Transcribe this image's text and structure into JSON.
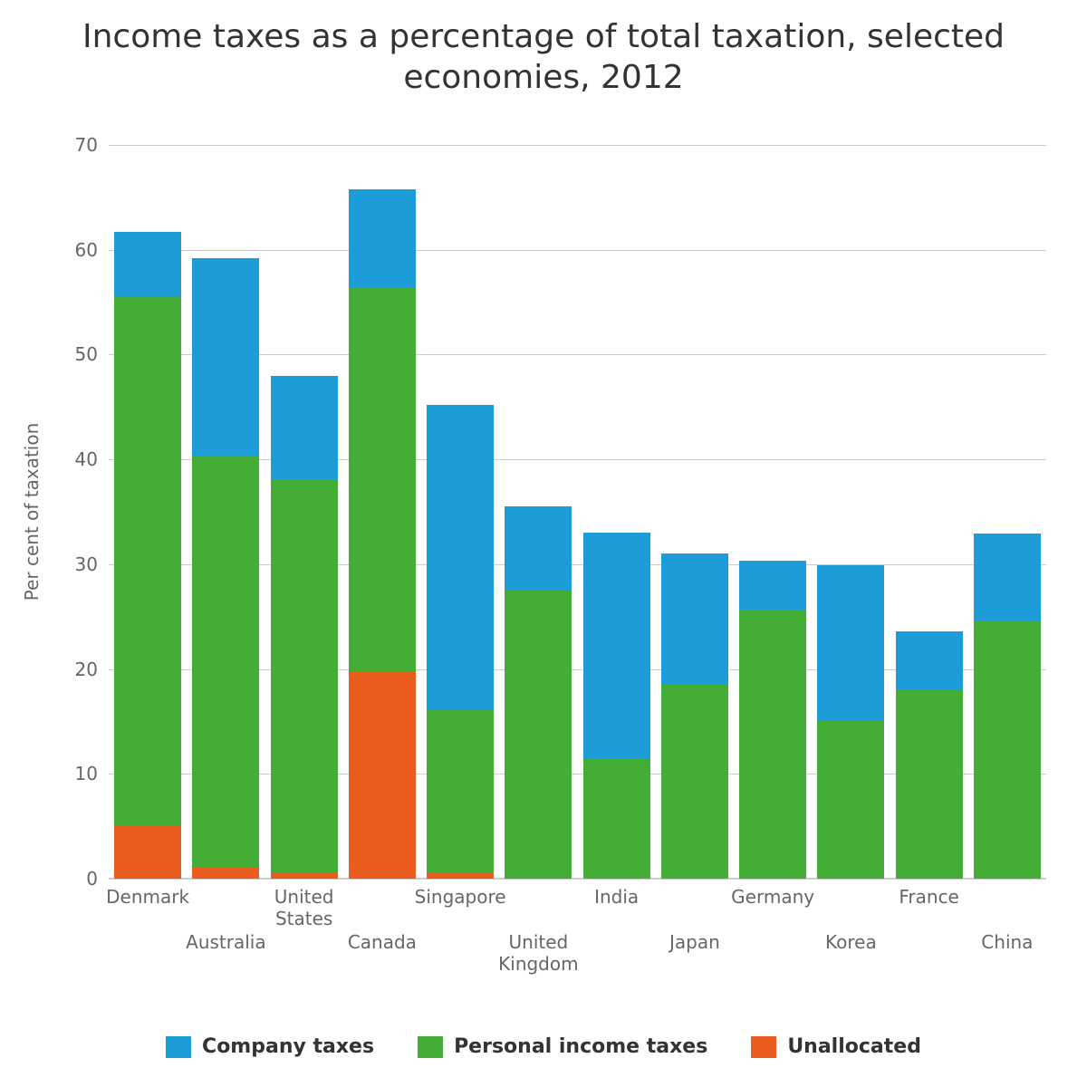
{
  "chart": {
    "type": "stacked-bar",
    "title": "Income taxes as a percentage of total taxation, selected economies, 2012",
    "title_fontsize": 36,
    "y_axis": {
      "label": "Per cent of taxation",
      "label_fontsize": 20,
      "min": 0,
      "max": 70,
      "tick_step": 10,
      "ticks": [
        0,
        10,
        20,
        30,
        40,
        50,
        60,
        70
      ],
      "tick_fontsize": 20,
      "grid_color": "#cccccc"
    },
    "x_axis": {
      "tick_fontsize": 20,
      "label_stagger": true
    },
    "background_color": "#ffffff",
    "series": [
      {
        "key": "company",
        "label": "Company taxes",
        "color": "#1c9dd9"
      },
      {
        "key": "personal",
        "label": "Personal income taxes",
        "color": "#44ad35"
      },
      {
        "key": "unallocated",
        "label": "Unallocated",
        "color": "#ea5c1d"
      }
    ],
    "stack_order": [
      "unallocated",
      "personal",
      "company"
    ],
    "categories": [
      "Denmark",
      "Australia",
      "United States",
      "Canada",
      "Singapore",
      "United Kingdom",
      "India",
      "Japan",
      "Germany",
      "Korea",
      "France",
      "China"
    ],
    "category_labels_wrapped": [
      "Denmark",
      "Australia",
      "United\nStates",
      "Canada",
      "Singapore",
      "United\nKingdom",
      "India",
      "Japan",
      "Germany",
      "Korea",
      "France",
      "China"
    ],
    "data": {
      "unallocated": [
        5.0,
        1.1,
        0.5,
        19.8,
        0.6,
        0.0,
        0.0,
        0.0,
        0.0,
        0.0,
        0.0,
        0.0
      ],
      "personal": [
        50.5,
        39.3,
        37.6,
        36.6,
        15.5,
        27.6,
        11.4,
        18.5,
        25.7,
        15.0,
        18.0,
        24.6
      ],
      "company": [
        6.2,
        18.8,
        9.9,
        9.4,
        29.1,
        7.9,
        21.6,
        12.5,
        4.6,
        14.9,
        5.6,
        8.3
      ]
    },
    "bar_width_ratio": 0.86,
    "legend_fontsize": 22
  }
}
